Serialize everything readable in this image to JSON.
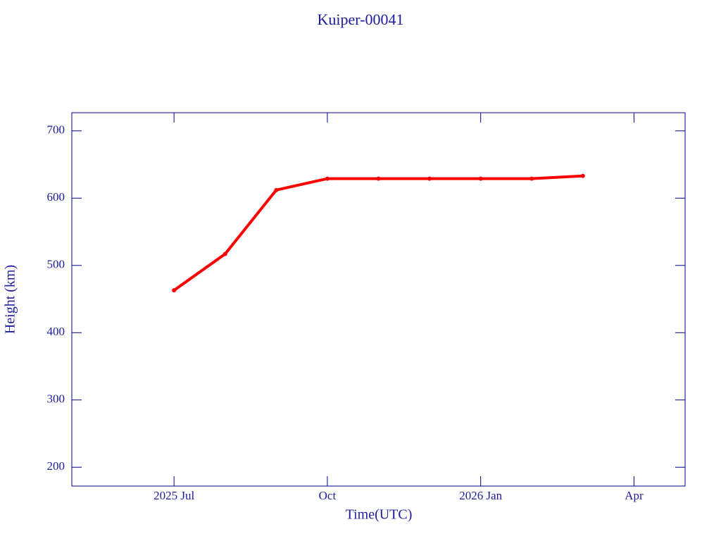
{
  "chart_data": {
    "type": "line",
    "title": "Kuiper-00041",
    "x_label": "Time(UTC)",
    "y_label": "Height (km)",
    "x": [
      "2025-07",
      "2025-08",
      "2025-09",
      "2025-10",
      "2025-11",
      "2025-12",
      "2026-01",
      "2026-02",
      "2026-03"
    ],
    "values": [
      463,
      517,
      612,
      629,
      629,
      629,
      629,
      629,
      633
    ],
    "color": "#ff0000",
    "xlim": [
      "2025-05",
      "2026-05"
    ],
    "xticks": [
      {
        "value": "2025-07",
        "label": "2025 Jul"
      },
      {
        "value": "2025-10",
        "label": "Oct"
      },
      {
        "value": "2026-01",
        "label": "2026 Jan"
      },
      {
        "value": "2026-04",
        "label": "Apr"
      }
    ],
    "ylim": [
      172,
      727
    ],
    "yticks": [
      200,
      300,
      400,
      500,
      600,
      700
    ]
  }
}
